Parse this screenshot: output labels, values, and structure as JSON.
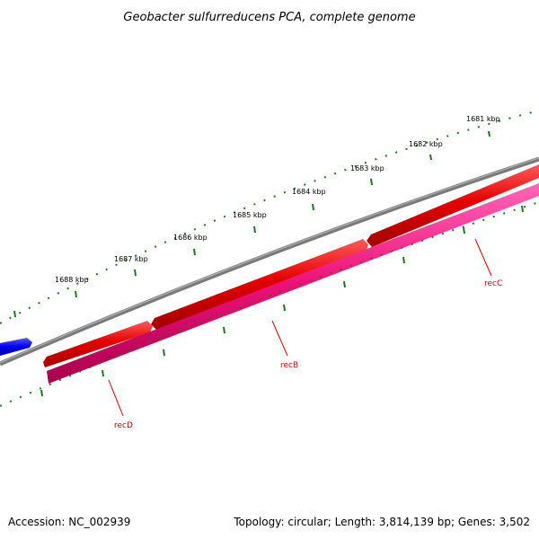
{
  "title": "Geobacter sulfurreducens PCA, complete genome",
  "footer": {
    "accession": "Accession: NC_002939",
    "summary": "Topology: circular; Length: 3,814,139 bp; Genes: 3,502"
  },
  "ticks": [
    {
      "label": "1681 kbp"
    },
    {
      "label": "1682 kbp"
    },
    {
      "label": "1683 kbp"
    },
    {
      "label": "1684 kbp"
    },
    {
      "label": "1685 kbp"
    },
    {
      "label": "1686 kbp"
    },
    {
      "label": "1687 kbp"
    },
    {
      "label": "1688 kbp"
    }
  ],
  "genes": [
    {
      "name": "recC",
      "color": "#e00000"
    },
    {
      "name": "recB",
      "color": "#e00000"
    },
    {
      "name": "recD",
      "color": "#ee1177"
    }
  ],
  "colors": {
    "backbone": "#808080",
    "tick": "#1a7a1a",
    "forward_gene": "#e00000",
    "reverse_gene": "#ee1177",
    "other_gene": "#0000ee",
    "label_line": "#dd0000"
  }
}
